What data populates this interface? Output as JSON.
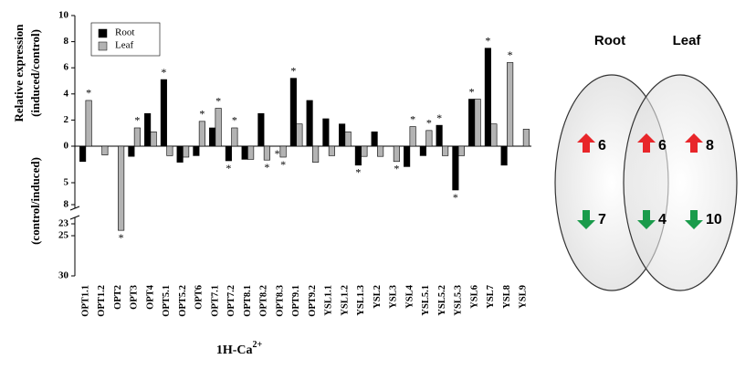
{
  "chart_data": {
    "type": "bar",
    "y_label": "Relative expression",
    "y_label_upper": "(induced/control)",
    "y_label_lower": "(control/induced)",
    "x_label": "1H-Ca",
    "x_label_sup": "2+",
    "categories": [
      "OPT1.1",
      "OPT1.2",
      "OPT2",
      "OPT3",
      "OPT4",
      "OPT5.1",
      "OPT5.2",
      "OPT6",
      "OPT7.1",
      "OPT7.2",
      "OPT8.1",
      "OPT8.2",
      "OPT8.3",
      "OPT9.1",
      "OPT9.2",
      "YSL1.1",
      "YSL1.2",
      "YSL1.3",
      "YSL2",
      "YSL3",
      "YSL4",
      "YSL5.1",
      "YSL5.2",
      "YSL5.3",
      "YSL6",
      "YSL7",
      "YSL8",
      "YSL9"
    ],
    "series": [
      {
        "name": "Root",
        "color": "#000000",
        "values": [
          -2.1,
          null,
          null,
          -1.4,
          2.5,
          5.1,
          -2.2,
          -1.3,
          1.4,
          -2.0,
          -1.8,
          2.5,
          null,
          5.2,
          3.5,
          2.1,
          1.7,
          -2.6,
          1.1,
          null,
          -2.8,
          -1.3,
          1.6,
          -6.0,
          3.6,
          7.5,
          -2.6,
          null
        ],
        "marks": [
          null,
          null,
          null,
          null,
          null,
          "*",
          null,
          null,
          null,
          "*",
          null,
          null,
          "*",
          "*",
          null,
          null,
          null,
          "*",
          null,
          null,
          null,
          null,
          "*",
          "*",
          "*",
          "*",
          null,
          null
        ]
      },
      {
        "name": "Leaf",
        "color": "#b3b3b3",
        "values": [
          3.5,
          -1.2,
          -24.1,
          1.4,
          1.1,
          -1.3,
          -1.5,
          1.9,
          2.9,
          1.4,
          -1.8,
          -1.9,
          -1.5,
          1.7,
          -2.2,
          -1.3,
          1.1,
          -1.4,
          -1.4,
          -2.1,
          1.5,
          1.2,
          -1.3,
          -1.3,
          3.6,
          1.7,
          6.4,
          1.3
        ],
        "marks": [
          "*",
          null,
          "*",
          "*",
          null,
          null,
          null,
          "*",
          "*",
          "*",
          null,
          "*",
          "*",
          null,
          null,
          null,
          null,
          null,
          null,
          "*",
          "*",
          "*",
          null,
          null,
          null,
          null,
          "*",
          null
        ]
      }
    ],
    "ylim": [
      -30,
      10
    ],
    "yticks": [
      10,
      8,
      6,
      4,
      2,
      0,
      {
        "value": -5,
        "label": "5"
      },
      {
        "value": -8,
        "label": "8"
      },
      {
        "value": -23,
        "label": "23"
      },
      {
        "value": -25,
        "label": "25"
      },
      {
        "value": -30,
        "label": "30"
      }
    ],
    "legend": "upper left"
  },
  "venn": {
    "sets": [
      "Root",
      "Leaf"
    ],
    "regions": [
      {
        "up": 6,
        "down": 7
      },
      {
        "up": 6,
        "down": 4
      },
      {
        "up": 8,
        "down": 10
      }
    ]
  }
}
